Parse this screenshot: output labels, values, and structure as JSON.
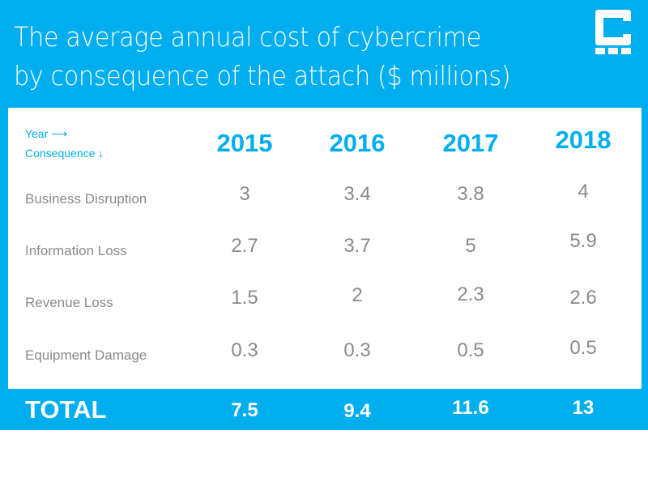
{
  "title_line1": "The average annual cost of cybercrime",
  "title_line2": "by consequence of the attach ($ millions)",
  "colors": {
    "accent": "#00aeef",
    "text_gray": "#8a8a8a"
  },
  "logo": "C-block logo",
  "chart_data": {
    "type": "table",
    "row_header": "Year ⟶",
    "col_header": "Consequence ↓",
    "years": [
      "2015",
      "2016",
      "2017",
      "2018"
    ],
    "rows": [
      {
        "label": "Business Disruption",
        "values": [
          "3",
          "3.4",
          "3.8",
          "4"
        ]
      },
      {
        "label": "Information Loss",
        "values": [
          "2.7",
          "3.7",
          "5",
          "5.9"
        ]
      },
      {
        "label": "Revenue Loss",
        "values": [
          "1.5",
          "2",
          "2.3",
          "2.6"
        ]
      },
      {
        "label": "Equipment Damage",
        "values": [
          "0.3",
          "0.3",
          "0.5",
          "0.5"
        ]
      }
    ],
    "total": {
      "label": "TOTAL",
      "values": [
        "7.5",
        "9.4",
        "11.6",
        "13"
      ]
    }
  }
}
